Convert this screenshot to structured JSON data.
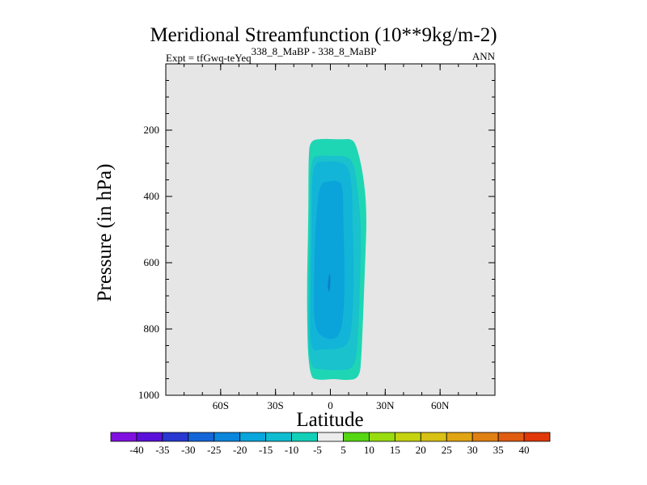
{
  "chart_data": {
    "type": "contour",
    "title": "Meridional Streamfunction (10**9kg/m-2)",
    "experiment_label": "Expt = tfGwq-teYeq",
    "experiment_superscript": "338_8_MaBP - 338_8_MaBP",
    "season": "ANN",
    "xlabel": "Latitude",
    "ylabel": "Pressure (in hPa)",
    "xlim": [
      -90,
      90
    ],
    "ylim": [
      1000,
      0
    ],
    "x_ticks": [
      {
        "value": -60,
        "label": "60S"
      },
      {
        "value": -30,
        "label": "30S"
      },
      {
        "value": 0,
        "label": "0"
      },
      {
        "value": 30,
        "label": "30N"
      },
      {
        "value": 60,
        "label": "60N"
      }
    ],
    "y_ticks": [
      {
        "value": 200,
        "label": "200"
      },
      {
        "value": 400,
        "label": "400"
      },
      {
        "value": 600,
        "label": "600"
      },
      {
        "value": 800,
        "label": "800"
      },
      {
        "value": 1000,
        "label": "1000"
      }
    ],
    "y_minor_step": 50,
    "x_minor_step": 10,
    "background_color": "#e6e6e6",
    "contour_regions": [
      {
        "level": -5,
        "color": "#1fd6b4",
        "polygon": [
          [
            -12,
            945
          ],
          [
            -13,
            700
          ],
          [
            -12,
            460
          ],
          [
            -12,
            280
          ],
          [
            -11,
            230
          ],
          [
            -4,
            226
          ],
          [
            6,
            228
          ],
          [
            11,
            226
          ],
          [
            14,
            240
          ],
          [
            18,
            330
          ],
          [
            20,
            450
          ],
          [
            19,
            600
          ],
          [
            18,
            750
          ],
          [
            17,
            880
          ],
          [
            16,
            950
          ],
          [
            8,
            955
          ],
          [
            2,
            950
          ],
          [
            -6,
            955
          ]
        ]
      },
      {
        "level": -10,
        "color": "#19c2cc",
        "polygon": [
          [
            -12,
            915
          ],
          [
            -12,
            700
          ],
          [
            -11,
            460
          ],
          [
            -11,
            285
          ],
          [
            -6,
            276
          ],
          [
            2,
            278
          ],
          [
            9,
            278
          ],
          [
            13,
            300
          ],
          [
            15,
            380
          ],
          [
            17,
            500
          ],
          [
            16,
            700
          ],
          [
            15,
            850
          ],
          [
            13,
            920
          ],
          [
            5,
            925
          ],
          [
            -5,
            923
          ]
        ]
      },
      {
        "level": -15,
        "color": "#12b4d8",
        "polygon": [
          [
            -11,
            870
          ],
          [
            -11,
            700
          ],
          [
            -10,
            470
          ],
          [
            -10,
            300
          ],
          [
            -3,
            294
          ],
          [
            5,
            295
          ],
          [
            10,
            310
          ],
          [
            12,
            380
          ],
          [
            12,
            470
          ],
          [
            13,
            620
          ],
          [
            12,
            780
          ],
          [
            10,
            848
          ],
          [
            3,
            862
          ],
          [
            -5,
            860
          ]
        ]
      },
      {
        "level": -20,
        "color": "#0aa3da",
        "polygon": [
          [
            -9,
            800
          ],
          [
            -9,
            640
          ],
          [
            -8,
            480
          ],
          [
            -6,
            360
          ],
          [
            -1,
            355
          ],
          [
            4,
            352
          ],
          [
            7,
            368
          ],
          [
            7,
            480
          ],
          [
            8,
            640
          ],
          [
            7,
            780
          ],
          [
            4,
            830
          ],
          [
            -3,
            830
          ]
        ]
      },
      {
        "level": -25,
        "color": "#0a7fcc",
        "polygon": [
          [
            -1.5,
            672
          ],
          [
            -1,
            645
          ],
          [
            -0.3,
            630
          ],
          [
            0.1,
            650
          ],
          [
            -0.2,
            680
          ],
          [
            -0.9,
            690
          ]
        ]
      }
    ],
    "colorbar": {
      "levels": [
        -40,
        -35,
        -30,
        -25,
        -20,
        -15,
        -10,
        -5,
        5,
        10,
        15,
        20,
        25,
        30,
        35,
        40
      ],
      "labels": [
        "-40",
        "-35",
        "-30",
        "-25",
        "-20",
        "-15",
        "-10",
        "-5",
        "5",
        "10",
        "15",
        "20",
        "25",
        "30",
        "35",
        "40"
      ],
      "colors": [
        "#8010e0",
        "#5a10d8",
        "#2838d0",
        "#1466d8",
        "#0a86dc",
        "#08a6dc",
        "#10bcd0",
        "#12d0b8",
        "#ececec",
        "#55d612",
        "#98dc10",
        "#c4d210",
        "#d8c014",
        "#e0a414",
        "#e07f12",
        "#e05c10",
        "#e03808"
      ]
    }
  }
}
